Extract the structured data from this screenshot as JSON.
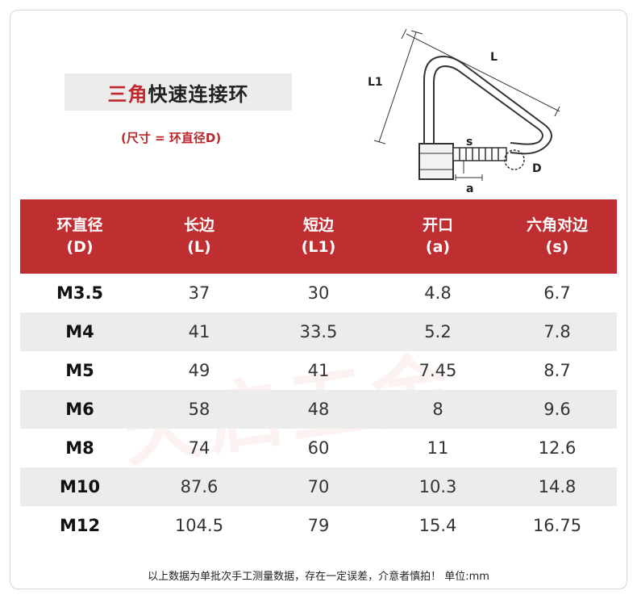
{
  "title": {
    "accent": "三角",
    "rest": "快速连接环"
  },
  "subtitle": "(尺寸 = 环直径D)",
  "diagram": {
    "labels": {
      "L": "L",
      "L1": "L1",
      "s": "s",
      "a": "a",
      "D": "D"
    },
    "stroke_color": "#333333"
  },
  "table": {
    "header_color": "#bf2e30",
    "headers": [
      {
        "line1": "环直径",
        "line2": "(D)"
      },
      {
        "line1": "长边",
        "line2": "(L)"
      },
      {
        "line1": "短边",
        "line2": "(L1)"
      },
      {
        "line1": "开口",
        "line2": "(a)"
      },
      {
        "line1": "六角对边",
        "line2": "(s)"
      }
    ],
    "rows": [
      [
        "M3.5",
        "37",
        "30",
        "4.8",
        "6.7"
      ],
      [
        "M4",
        "41",
        "33.5",
        "5.2",
        "7.8"
      ],
      [
        "M5",
        "49",
        "41",
        "7.45",
        "8.7"
      ],
      [
        "M6",
        "58",
        "48",
        "8",
        "9.6"
      ],
      [
        "M8",
        "74",
        "60",
        "11",
        "12.6"
      ],
      [
        "M10",
        "87.6",
        "70",
        "10.3",
        "14.8"
      ],
      [
        "M12",
        "104.5",
        "79",
        "15.4",
        "16.75"
      ]
    ]
  },
  "note": "以上数据为单批次手工测量数据，存在一定误差，介意者慎拍！ 单位:mm"
}
